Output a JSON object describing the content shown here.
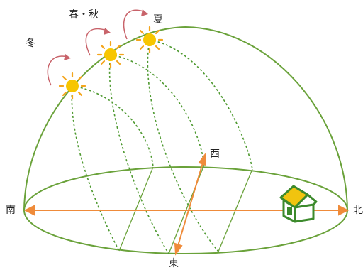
{
  "labels": {
    "winter": "冬",
    "spring_autumn": "春・秋",
    "summer": "夏",
    "west": "西",
    "south": "南",
    "north": "北",
    "east": "東"
  },
  "colors": {
    "dome": "#6aa23a",
    "sun_path": "#4f9a31",
    "ground_ellipse": "#6aa23a",
    "arrow": "#ef8b3a",
    "season_arrow": "#c8636a",
    "sun": "#f7c600",
    "sun_ray": "#f4a51c",
    "house_outline": "#3c8a2c",
    "house_roof": "#f1c40f",
    "text": "#222222"
  },
  "icons": {
    "sun": "sun-icon",
    "house": "house-icon"
  }
}
